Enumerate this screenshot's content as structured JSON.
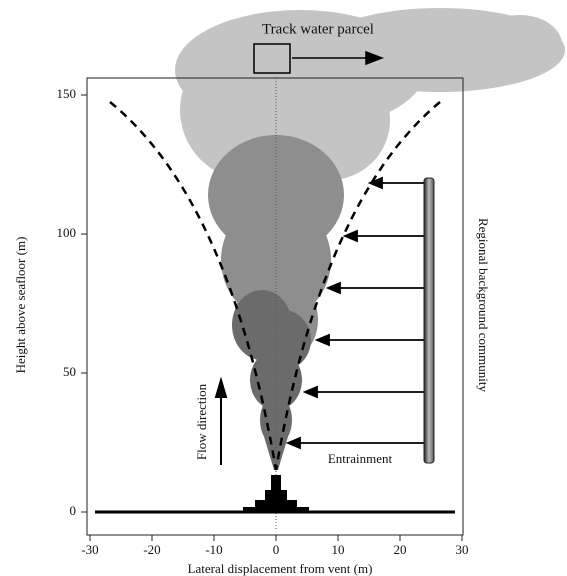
{
  "figure": {
    "title": "Track water parcel",
    "x_axis": {
      "label": "Lateral displacement from vent (m)",
      "ticks": [
        -30,
        -20,
        -10,
        0,
        10,
        20,
        30
      ]
    },
    "y_axis": {
      "label": "Height above seafloor (m)",
      "ticks": [
        0,
        50,
        100,
        150
      ]
    },
    "annotations": {
      "flow": "Flow direction",
      "entrainment": "Entrainment",
      "community": "Regional background community"
    }
  }
}
